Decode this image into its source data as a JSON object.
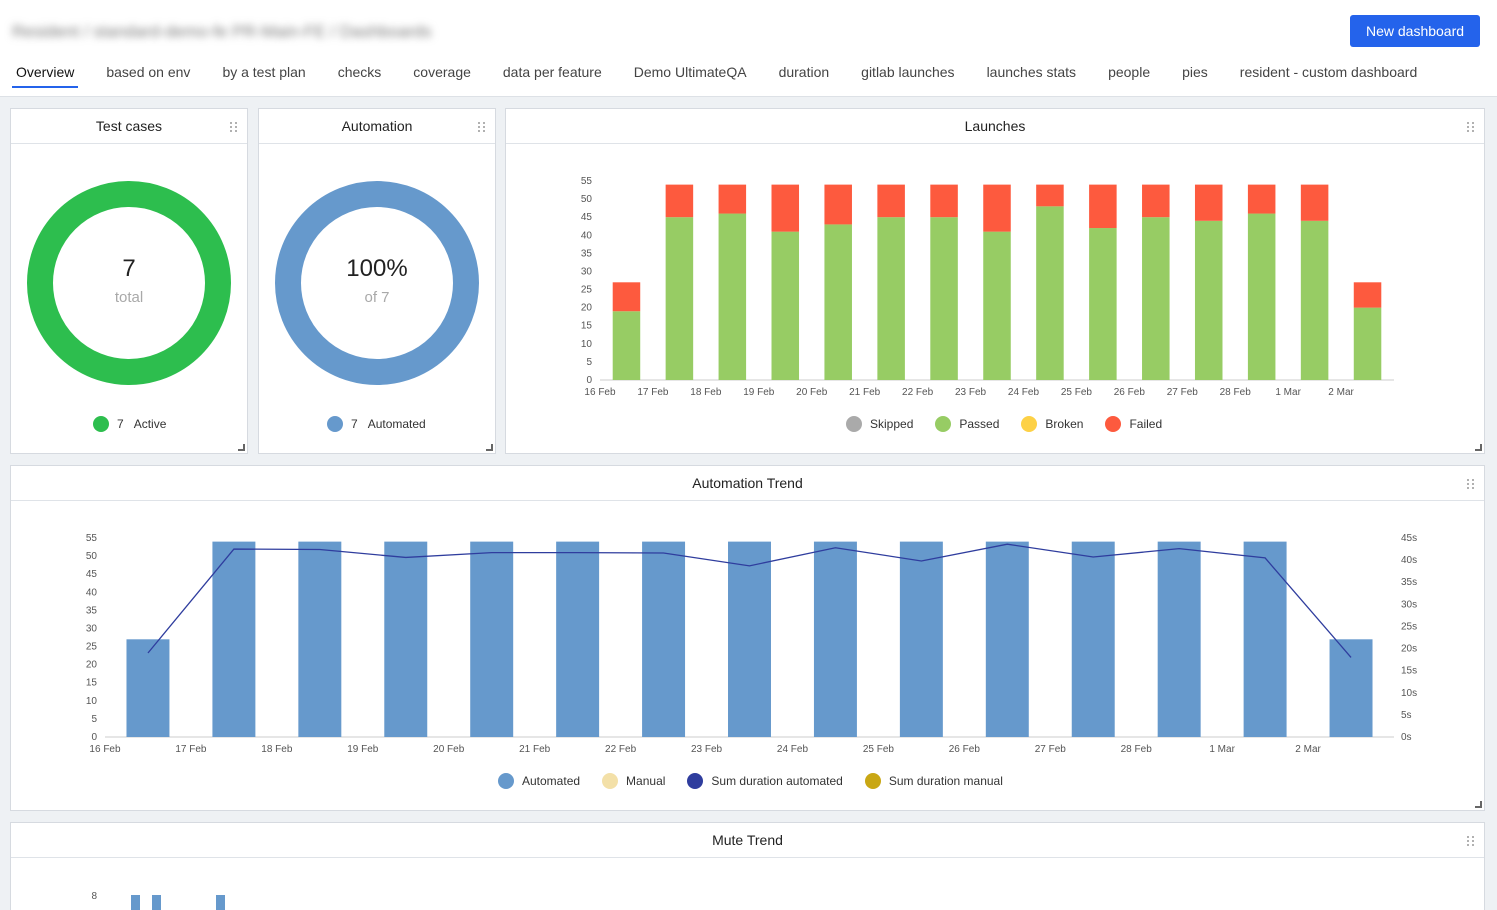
{
  "header": {
    "breadcrumb": "Resident / standard-demo-fe PR-Main-FE / Dashboards",
    "new_dashboard_label": "New dashboard"
  },
  "tabs": [
    {
      "label": "Overview"
    },
    {
      "label": "based on env"
    },
    {
      "label": "by a test plan"
    },
    {
      "label": "checks"
    },
    {
      "label": "coverage"
    },
    {
      "label": "data per feature"
    },
    {
      "label": "Demo UltimateQA"
    },
    {
      "label": "duration"
    },
    {
      "label": "gitlab launches"
    },
    {
      "label": "launches stats"
    },
    {
      "label": "people"
    },
    {
      "label": "pies"
    },
    {
      "label": "resident - custom dashboard"
    }
  ],
  "test_cases": {
    "title": "Test cases",
    "total": "7",
    "total_label": "total",
    "legend_count": "7",
    "legend_label": "Active",
    "color": "#2dbe4e"
  },
  "automation": {
    "title": "Automation",
    "percent": "100%",
    "of_label": "of 7",
    "legend_count": "7",
    "legend_label": "Automated",
    "color": "#6699cc"
  },
  "launches": {
    "title": "Launches",
    "legend": [
      {
        "label": "Skipped",
        "color": "#aaaaaa"
      },
      {
        "label": "Passed",
        "color": "#97cc64"
      },
      {
        "label": "Broken",
        "color": "#fdd146"
      },
      {
        "label": "Failed",
        "color": "#fd5a3e"
      }
    ]
  },
  "automation_trend": {
    "title": "Automation Trend",
    "legend": [
      {
        "label": "Automated",
        "color": "#6699cc"
      },
      {
        "label": "Manual",
        "color": "#f3e0a8"
      },
      {
        "label": "Sum duration automated",
        "color": "#2f3d9e"
      },
      {
        "label": "Sum duration manual",
        "color": "#c9a714"
      }
    ]
  },
  "mute_trend": {
    "title": "Mute Trend",
    "y_tick_top": "8"
  },
  "chart_data": [
    {
      "type": "bar",
      "title": "Launches",
      "stacked": true,
      "categories": [
        "16 Feb",
        "17 Feb",
        "18 Feb",
        "19 Feb",
        "20 Feb",
        "21 Feb",
        "22 Feb",
        "23 Feb",
        "24 Feb",
        "25 Feb",
        "26 Feb",
        "27 Feb",
        "28 Feb",
        "1 Mar",
        "2 Mar"
      ],
      "category_rows": [
        {
          "passed": 19,
          "failed": 8
        },
        {
          "passed": 45,
          "failed": 9
        },
        {
          "passed": 46,
          "failed": 8
        },
        {
          "passed": 41,
          "failed": 13
        },
        {
          "passed": 43,
          "failed": 11
        },
        {
          "passed": 45,
          "failed": 9
        },
        {
          "passed": 45,
          "failed": 9
        },
        {
          "passed": 41,
          "failed": 13
        },
        {
          "passed": 48,
          "failed": 6
        },
        {
          "passed": 42,
          "failed": 12
        },
        {
          "passed": 45,
          "failed": 9
        },
        {
          "passed": 44,
          "failed": 10
        },
        {
          "passed": 46,
          "failed": 8
        },
        {
          "passed": 44,
          "failed": 10
        },
        {
          "passed": 20,
          "failed": 7
        }
      ],
      "y_ticks": [
        "0",
        "5",
        "10",
        "15",
        "20",
        "25",
        "30",
        "35",
        "40",
        "45",
        "50",
        "55"
      ],
      "ylim": [
        0,
        55
      ],
      "legend_position": "bottom"
    },
    {
      "type": "bar",
      "title": "Automation Trend",
      "categories": [
        "16 Feb",
        "17 Feb",
        "18 Feb",
        "19 Feb",
        "20 Feb",
        "21 Feb",
        "22 Feb",
        "23 Feb",
        "24 Feb",
        "25 Feb",
        "26 Feb",
        "27 Feb",
        "28 Feb",
        "1 Mar",
        "2 Mar"
      ],
      "automated": [
        27,
        54,
        54,
        54,
        54,
        54,
        54,
        54,
        54,
        54,
        54,
        54,
        54,
        54,
        27
      ],
      "sum_duration_automated": [
        19,
        42.5,
        42.4,
        40.6,
        41.7,
        41.7,
        41.6,
        38.7,
        42.8,
        39.8,
        43.6,
        40.7,
        42.6,
        40.5,
        18
      ],
      "y_ticks": [
        "0",
        "5",
        "10",
        "15",
        "20",
        "25",
        "30",
        "35",
        "40",
        "45",
        "50",
        "55"
      ],
      "ylim": [
        0,
        55
      ],
      "y2_ticks": [
        "0s",
        "5s",
        "10s",
        "15s",
        "20s",
        "25s",
        "30s",
        "35s",
        "40s",
        "45s"
      ],
      "y2lim": [
        0,
        45
      ],
      "legend_position": "bottom"
    }
  ]
}
